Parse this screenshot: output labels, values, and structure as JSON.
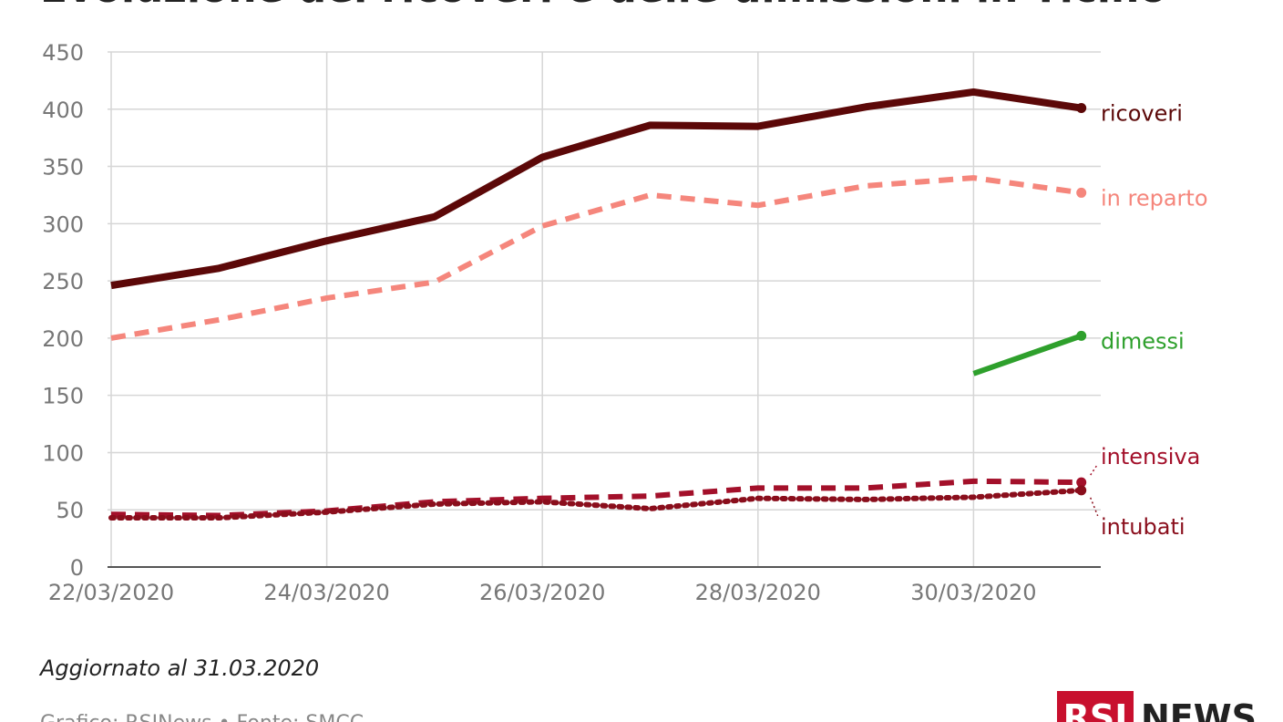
{
  "chart_data": {
    "type": "line",
    "title": "Evoluzione dei ricoveri e delle dimissioni in Ticino",
    "note": "Aggiornato al 31.03.2020",
    "source": "Grafico: RSINews • Fonte: SMCC",
    "logo": [
      "RSI",
      "NEWS"
    ],
    "categories": [
      "22/03/2020",
      null,
      "24/03/2020",
      null,
      "26/03/2020",
      null,
      "28/03/2020",
      null,
      "30/03/2020",
      null
    ],
    "ylim": [
      0,
      450
    ],
    "yticks": [
      0,
      50,
      100,
      150,
      200,
      250,
      300,
      350,
      400,
      450
    ],
    "grid": true,
    "series": [
      {
        "name": "ricoveri",
        "color": "#5c0808",
        "dash": "solid",
        "values": [
          246,
          261,
          285,
          306,
          358,
          386,
          385,
          402,
          415,
          401
        ]
      },
      {
        "name": "in reparto",
        "color": "#f5867c",
        "dash": "dashed",
        "values": [
          200,
          216,
          235,
          249,
          298,
          325,
          316,
          333,
          340,
          327
        ]
      },
      {
        "name": "dimessi",
        "color": "#2ea02c",
        "dash": "solid",
        "values": [
          null,
          null,
          null,
          null,
          null,
          null,
          null,
          null,
          169,
          202
        ]
      },
      {
        "name": "intensiva",
        "color": "#a3102a",
        "dash": "dashed",
        "values": [
          46,
          45,
          49,
          57,
          60,
          62,
          69,
          69,
          75,
          74
        ]
      },
      {
        "name": "intubati",
        "color": "#8a0e1c",
        "dash": "dotted",
        "values": [
          43,
          43,
          48,
          55,
          57,
          51,
          60,
          59,
          61,
          67
        ]
      }
    ]
  }
}
